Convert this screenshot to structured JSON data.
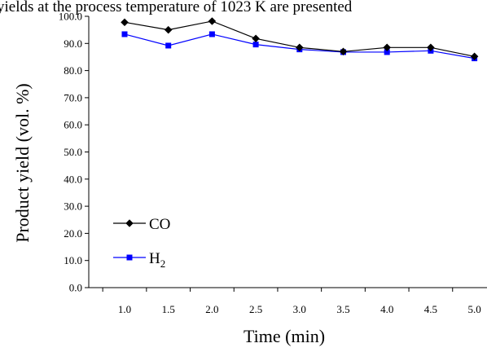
{
  "caption": "yields at the process temperature of 1023 K are presented",
  "chart_data": {
    "type": "line",
    "title": "",
    "xlabel": "Time (min)",
    "ylabel": "Product yield (vol. %)",
    "x": [
      1.0,
      1.5,
      2.0,
      2.5,
      3.0,
      3.5,
      4.0,
      4.5,
      5.0
    ],
    "x_tick_labels": [
      "1.0",
      "1.5",
      "2.0",
      "2.5",
      "3.0",
      "3.5",
      "4.0",
      "4.5",
      "5.0"
    ],
    "ylim": [
      0,
      100
    ],
    "y_tick_labels": [
      "0.0",
      "10.0",
      "20.0",
      "30.0",
      "40.0",
      "50.0",
      "60.0",
      "70.0",
      "80.0",
      "90.0",
      "100.0"
    ],
    "grid": false,
    "legend_position": "bottom-left",
    "series": [
      {
        "name": "CO",
        "subscript": "",
        "color": "#000000",
        "marker": "diamond",
        "values": [
          97.8,
          95.0,
          98.2,
          91.8,
          88.5,
          87.0,
          88.5,
          88.5,
          85.2
        ]
      },
      {
        "name": "H",
        "subscript": "2",
        "color": "#0000ff",
        "marker": "square",
        "values": [
          93.4,
          89.2,
          93.4,
          89.6,
          87.8,
          86.8,
          86.8,
          87.3,
          84.5
        ]
      }
    ]
  }
}
